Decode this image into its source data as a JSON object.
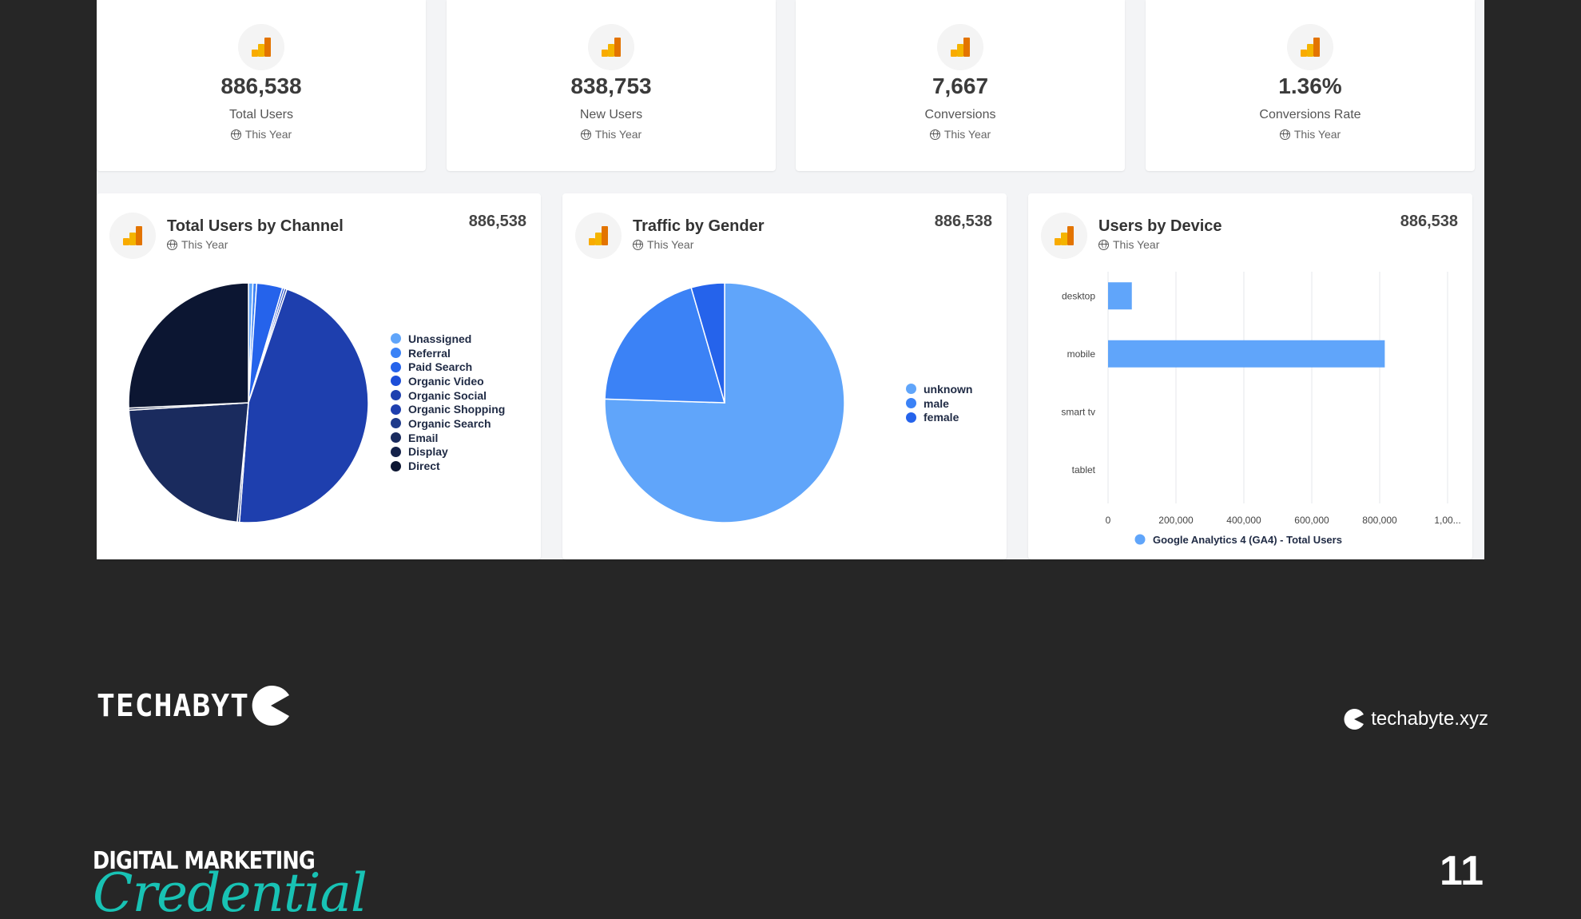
{
  "stats": [
    {
      "value": "886,538",
      "label": "Total Users",
      "period": "This Year"
    },
    {
      "value": "838,753",
      "label": "New Users",
      "period": "This Year"
    },
    {
      "value": "7,667",
      "label": "Conversions",
      "period": "This Year"
    },
    {
      "value": "1.36%",
      "label": "Conversions Rate",
      "period": "This Year"
    }
  ],
  "panels": {
    "channel": {
      "title": "Total Users by Channel",
      "period": "This Year",
      "total": "886,538"
    },
    "gender": {
      "title": "Traffic by Gender",
      "period": "This Year",
      "total": "886,538"
    },
    "device": {
      "title": "Users by Device",
      "period": "This Year",
      "total": "886,538"
    }
  },
  "chart_data": [
    {
      "type": "pie",
      "legend_position": "right",
      "slices": [
        {
          "label": "Unassigned",
          "value": 0.6,
          "color": "#60a5fa"
        },
        {
          "label": "Referral",
          "value": 0.5,
          "color": "#3b82f6"
        },
        {
          "label": "Paid Search",
          "value": 3.5,
          "color": "#2563eb"
        },
        {
          "label": "Organic Video",
          "value": 0.3,
          "color": "#1d4ed8"
        },
        {
          "label": "Organic Social",
          "value": 0.3,
          "color": "#1e40af"
        },
        {
          "label": "Organic Shopping",
          "value": 46.0,
          "color": "#1e3fae"
        },
        {
          "label": "Organic Search",
          "value": 0.3,
          "color": "#1e3a8a"
        },
        {
          "label": "Email",
          "value": 22.5,
          "color": "#1a2b5e"
        },
        {
          "label": "Display",
          "value": 0.3,
          "color": "#14224a"
        },
        {
          "label": "Direct",
          "value": 25.7,
          "color": "#0c1632"
        }
      ]
    },
    {
      "type": "pie",
      "legend_position": "right",
      "slices": [
        {
          "label": "unknown",
          "value": 75.5,
          "color": "#60a5fa"
        },
        {
          "label": "male",
          "value": 20.0,
          "color": "#3b82f6"
        },
        {
          "label": "female",
          "value": 4.5,
          "color": "#2563eb"
        }
      ]
    },
    {
      "type": "bar",
      "orientation": "horizontal",
      "categories": [
        "desktop",
        "mobile",
        "smart tv",
        "tablet"
      ],
      "series": [
        {
          "name": "Google Analytics 4 (GA4) - Total Users",
          "values": [
            70000,
            815000,
            0,
            0
          ],
          "color": "#60a5fa"
        }
      ],
      "xlim": [
        0,
        1000000
      ],
      "xticks": [
        "0",
        "200,000",
        "400,000",
        "600,000",
        "800,000",
        "1,00..."
      ],
      "grid": true
    }
  ],
  "brand": {
    "name": "TECHABYT",
    "site": "techabyte.xyz"
  },
  "credential": {
    "line1": "DIGITAL MARKETING",
    "line2": "Credential"
  },
  "page_number": "11",
  "icons": {
    "analytics": "google-analytics-icon",
    "globe": "globe-icon",
    "pacman": "pacman-logo-icon"
  }
}
